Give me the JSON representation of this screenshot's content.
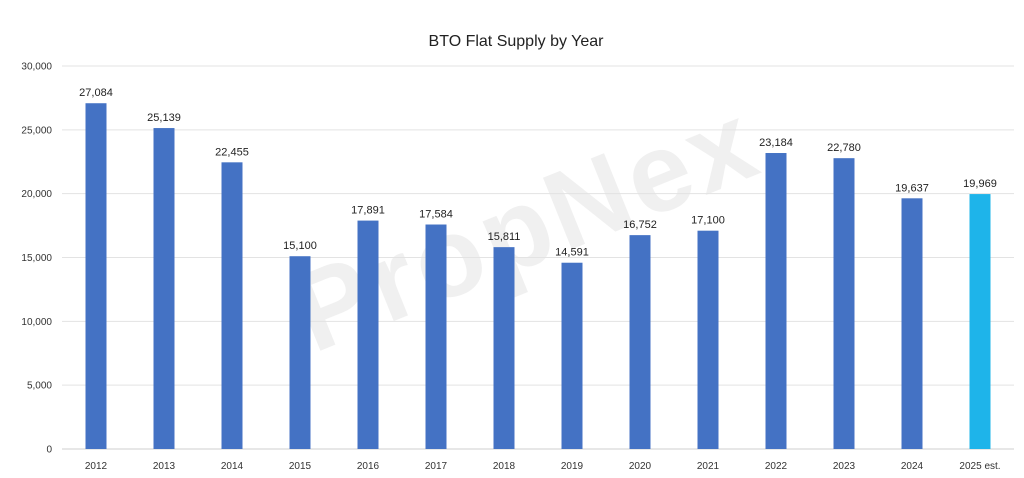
{
  "chart_data": {
    "type": "bar",
    "title": "BTO Flat Supply by Year",
    "watermark": "PropNex",
    "categories": [
      "2012",
      "2013",
      "2014",
      "2015",
      "2016",
      "2017",
      "2018",
      "2019",
      "2020",
      "2021",
      "2022",
      "2023",
      "2024",
      "2025 est."
    ],
    "values": [
      27084,
      25139,
      22455,
      15100,
      17891,
      17584,
      15811,
      14591,
      16752,
      17100,
      23184,
      22780,
      19637,
      19969
    ],
    "value_labels": [
      "27,084",
      "25,139",
      "22,455",
      "15,100",
      "17,891",
      "17,584",
      "15,811",
      "14,591",
      "16,752",
      "17,100",
      "23,184",
      "22,780",
      "19,637",
      "19,969"
    ],
    "ylim": [
      0,
      30000
    ],
    "yticks": [
      0,
      5000,
      10000,
      15000,
      20000,
      25000,
      30000
    ],
    "ytick_labels": [
      "0",
      "5,000",
      "10,000",
      "15,000",
      "20,000",
      "25,000",
      "30,000"
    ],
    "grid": true,
    "colors": {
      "bar": "#4472C4",
      "estimate_bar": "#1EB4EA",
      "grid": "#e3e3e3"
    },
    "highlight_last": true
  }
}
